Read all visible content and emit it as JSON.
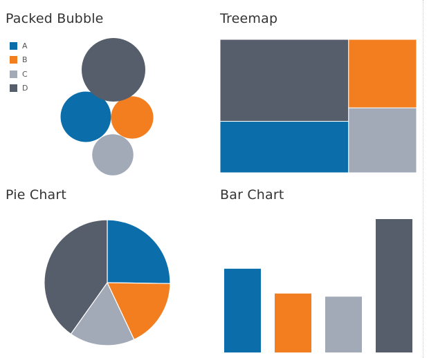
{
  "colors": {
    "A": "#0b6eaa",
    "B": "#f27e20",
    "C": "#a2aab8",
    "D": "#575e6b"
  },
  "chart_data": [
    {
      "type": "bubble",
      "title": "Packed Bubble",
      "legend": {
        "position": "top-left",
        "entries": [
          "A",
          "B",
          "C",
          "D"
        ]
      },
      "categories": [
        "A",
        "B",
        "C",
        "D"
      ],
      "values": [
        27,
        19,
        18,
        43
      ]
    },
    {
      "type": "treemap",
      "title": "Treemap",
      "categories": [
        "A",
        "B",
        "C",
        "D"
      ],
      "values": [
        27,
        19,
        18,
        43
      ]
    },
    {
      "type": "pie",
      "title": "Pie Chart",
      "categories": [
        "A",
        "B",
        "C",
        "D"
      ],
      "values": [
        27,
        19,
        18,
        43
      ]
    },
    {
      "type": "bar",
      "title": "Bar Chart",
      "categories": [
        "A",
        "B",
        "C",
        "D"
      ],
      "values": [
        27,
        19,
        18,
        43
      ],
      "ylim": [
        0,
        43
      ],
      "grid": false
    }
  ]
}
